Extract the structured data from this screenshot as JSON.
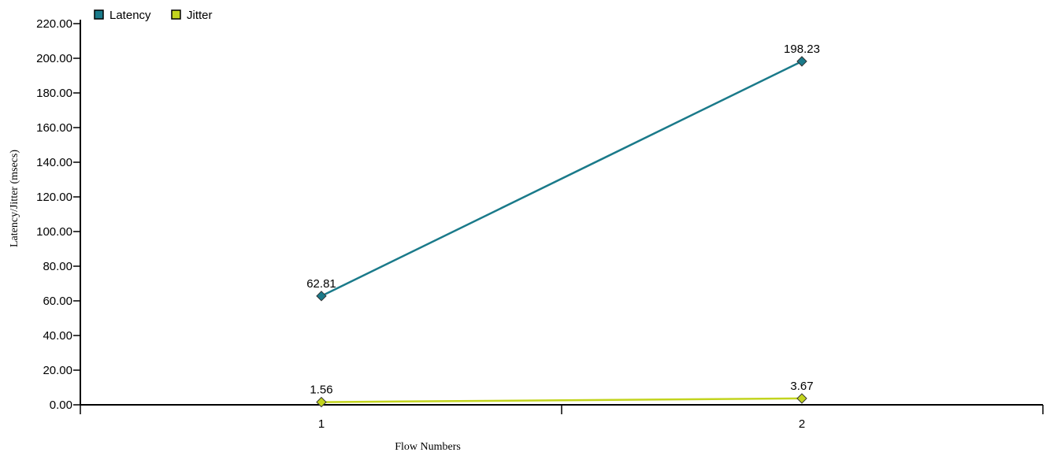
{
  "chart_data": {
    "type": "line",
    "categories": [
      "1",
      "2"
    ],
    "series": [
      {
        "name": "Latency",
        "values": [
          62.81,
          198.23
        ],
        "labels": [
          "62.81",
          "198.23"
        ],
        "color": "#1a7a8a"
      },
      {
        "name": "Jitter",
        "values": [
          1.56,
          3.67
        ],
        "labels": [
          "1.56",
          "3.67"
        ],
        "color": "#c2d41e"
      }
    ],
    "xlabel": "Flow Numbers",
    "ylabel": "Latency/Jitter (msecs)",
    "ylim": [
      0,
      220
    ],
    "yticks": [
      "0.00",
      "20.00",
      "40.00",
      "60.00",
      "80.00",
      "100.00",
      "120.00",
      "140.00",
      "160.00",
      "180.00",
      "200.00",
      "220.00"
    ],
    "grid": false,
    "legend_position": "top-left"
  }
}
